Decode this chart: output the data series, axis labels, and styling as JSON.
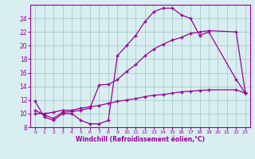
{
  "line1_x": [
    0,
    1,
    2,
    3,
    4,
    5,
    6,
    7,
    8,
    9,
    10,
    11,
    12,
    13,
    14,
    15,
    16,
    17,
    18,
    19,
    22,
    23
  ],
  "line1_y": [
    11.8,
    9.5,
    9.0,
    10.0,
    10.0,
    9.0,
    8.5,
    8.5,
    9.0,
    18.5,
    20.0,
    21.5,
    23.5,
    25.0,
    25.5,
    25.5,
    24.5,
    24.0,
    21.5,
    22.0,
    15.0,
    13.0
  ],
  "line2_x": [
    0,
    1,
    2,
    3,
    4,
    5,
    6,
    7,
    8,
    9,
    10,
    11,
    12,
    13,
    14,
    15,
    16,
    17,
    18,
    19,
    22,
    23
  ],
  "line2_y": [
    10.5,
    9.8,
    9.3,
    10.2,
    10.3,
    10.5,
    10.8,
    14.2,
    14.3,
    15.0,
    16.2,
    17.2,
    18.5,
    19.5,
    20.2,
    20.8,
    21.2,
    21.8,
    22.0,
    22.2,
    22.0,
    13.0
  ],
  "line3_x": [
    0,
    1,
    2,
    3,
    4,
    5,
    6,
    7,
    8,
    9,
    10,
    11,
    12,
    13,
    14,
    15,
    16,
    17,
    18,
    19,
    22,
    23
  ],
  "line3_y": [
    10.0,
    10.0,
    10.2,
    10.5,
    10.5,
    10.8,
    11.0,
    11.2,
    11.5,
    11.8,
    12.0,
    12.2,
    12.5,
    12.7,
    12.8,
    13.0,
    13.2,
    13.3,
    13.4,
    13.5,
    13.5,
    13.0
  ],
  "line_color": "#990099",
  "bg_color": "#d8eef0",
  "grid_color": "#aacccc",
  "xlabel": "Windchill (Refroidissement éolien,°C)",
  "xlim": [
    -0.5,
    23.5
  ],
  "ylim": [
    8,
    26
  ],
  "yticks": [
    8,
    10,
    12,
    14,
    16,
    18,
    20,
    22,
    24
  ],
  "xticks": [
    0,
    1,
    2,
    3,
    4,
    5,
    6,
    7,
    8,
    9,
    10,
    11,
    12,
    13,
    14,
    15,
    16,
    17,
    18,
    19,
    20,
    21,
    22,
    23
  ],
  "marker": "+"
}
